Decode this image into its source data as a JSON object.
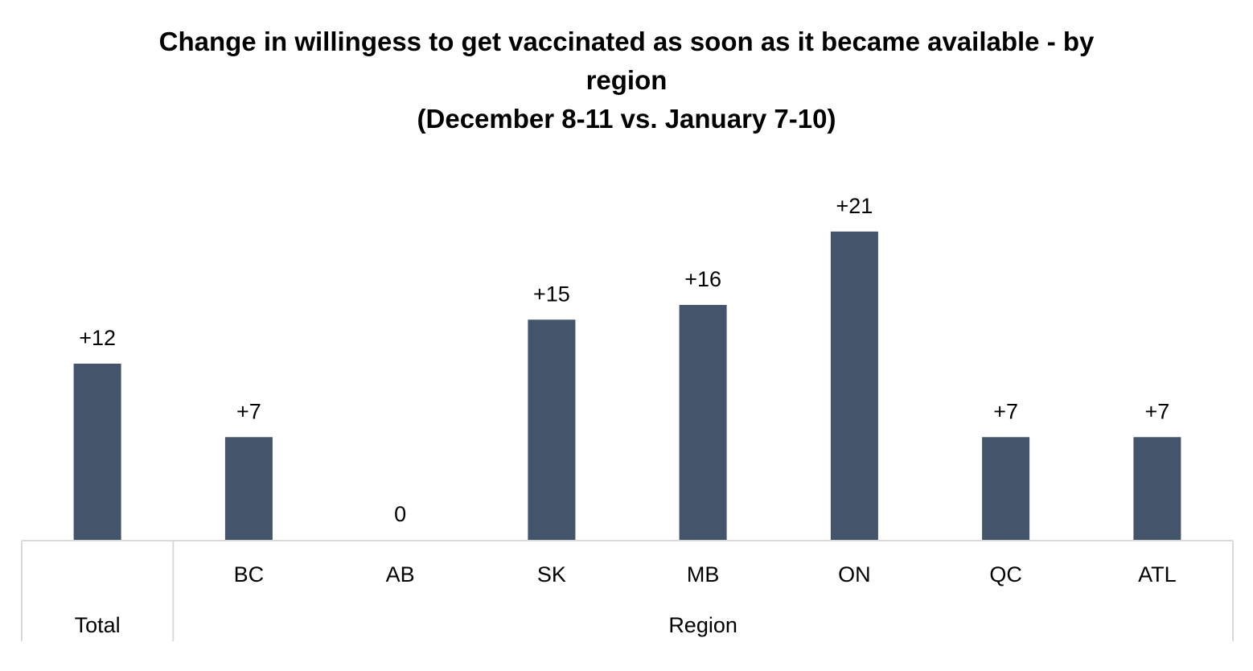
{
  "title_lines": [
    "Change in willingess to get vaccinated as soon as it became available - by",
    "region",
    "(December 8-11 vs. January 7-10)"
  ],
  "colors": {
    "bar": "#44546a",
    "axis": "#d9d9d9",
    "text": "#000000"
  },
  "chart_data": {
    "type": "bar",
    "title": "Change in willingess to get vaccinated as soon as it became available - by region (December 8-11 vs. January 7-10)",
    "categories": [
      "",
      "BC",
      "AB",
      "SK",
      "MB",
      "ON",
      "QC",
      "ATL"
    ],
    "values": [
      12,
      7,
      0,
      15,
      16,
      21,
      7,
      7
    ],
    "value_labels": [
      "+12",
      "+7",
      "0",
      "+15",
      "+16",
      "+21",
      "+7",
      "+7"
    ],
    "groups": [
      {
        "label": "Total",
        "span": 1
      },
      {
        "label": "Region",
        "span": 7
      }
    ],
    "xlabel": "",
    "ylabel": "",
    "ylim": [
      0,
      21
    ],
    "grid": false,
    "legend": "none"
  }
}
